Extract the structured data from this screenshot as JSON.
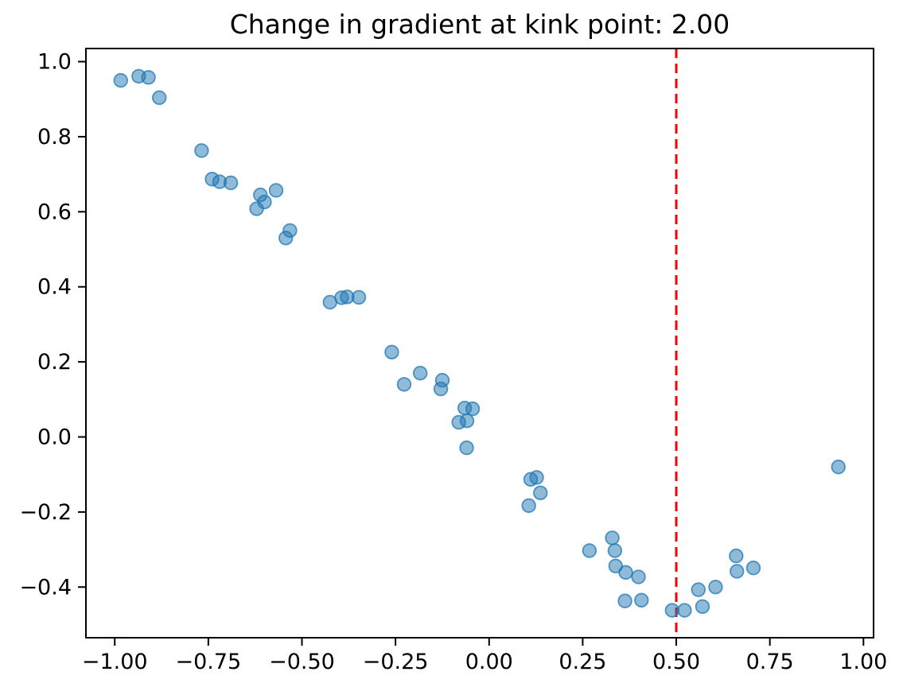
{
  "title": "Change in gradient at kink point: 2.00",
  "chart_data": {
    "type": "scatter",
    "title": "Change in gradient at kink point: 2.00",
    "xlabel": "",
    "ylabel": "",
    "xlim": [
      -1.077,
      1.027
    ],
    "ylim": [
      -0.535,
      1.035
    ],
    "grid": false,
    "legend": null,
    "x_tick_values": [
      -1.0,
      -0.75,
      -0.5,
      -0.25,
      0.0,
      0.25,
      0.5,
      0.75,
      1.0
    ],
    "x_tick_labels": [
      "−1.00",
      "−0.75",
      "−0.50",
      "−0.25",
      "0.00",
      "0.25",
      "0.50",
      "0.75",
      "1.00"
    ],
    "y_tick_values": [
      -0.4,
      -0.2,
      0.0,
      0.2,
      0.4,
      0.6,
      0.8,
      1.0
    ],
    "y_tick_labels": [
      "−0.4",
      "−0.2",
      "0.0",
      "0.2",
      "0.4",
      "0.6",
      "0.8",
      "1.0"
    ],
    "marker_color": "#1f77b4",
    "marker_fill_opacity": 0.5,
    "marker_edge_opacity": 0.75,
    "vline": {
      "x": 0.5,
      "color": "#ff0000",
      "style": "dashed"
    },
    "series": [
      {
        "name": "scatter-data",
        "points": [
          [
            -0.984,
            0.95
          ],
          [
            -0.936,
            0.961
          ],
          [
            -0.91,
            0.958
          ],
          [
            -0.881,
            0.904
          ],
          [
            -0.768,
            0.763
          ],
          [
            -0.74,
            0.687
          ],
          [
            -0.72,
            0.68
          ],
          [
            -0.69,
            0.677
          ],
          [
            -0.611,
            0.645
          ],
          [
            -0.6,
            0.626
          ],
          [
            -0.621,
            0.608
          ],
          [
            -0.569,
            0.657
          ],
          [
            -0.532,
            0.55
          ],
          [
            -0.543,
            0.53
          ],
          [
            -0.425,
            0.359
          ],
          [
            -0.394,
            0.371
          ],
          [
            -0.379,
            0.373
          ],
          [
            -0.348,
            0.372
          ],
          [
            -0.26,
            0.226
          ],
          [
            -0.184,
            0.17
          ],
          [
            -0.227,
            0.14
          ],
          [
            -0.125,
            0.151
          ],
          [
            -0.129,
            0.128
          ],
          [
            -0.065,
            0.077
          ],
          [
            -0.044,
            0.075
          ],
          [
            -0.081,
            0.039
          ],
          [
            -0.059,
            0.043
          ],
          [
            -0.06,
            -0.029
          ],
          [
            0.111,
            -0.113
          ],
          [
            0.127,
            -0.108
          ],
          [
            0.137,
            -0.149
          ],
          [
            0.106,
            -0.183
          ],
          [
            0.268,
            -0.303
          ],
          [
            0.329,
            -0.269
          ],
          [
            0.336,
            -0.303
          ],
          [
            0.338,
            -0.344
          ],
          [
            0.365,
            -0.361
          ],
          [
            0.399,
            -0.373
          ],
          [
            0.363,
            -0.437
          ],
          [
            0.407,
            -0.435
          ],
          [
            0.489,
            -0.462
          ],
          [
            0.522,
            -0.462
          ],
          [
            0.57,
            -0.452
          ],
          [
            0.559,
            -0.407
          ],
          [
            0.605,
            -0.4
          ],
          [
            0.66,
            -0.317
          ],
          [
            0.662,
            -0.358
          ],
          [
            0.706,
            -0.349
          ],
          [
            0.933,
            -0.08
          ]
        ]
      }
    ]
  }
}
